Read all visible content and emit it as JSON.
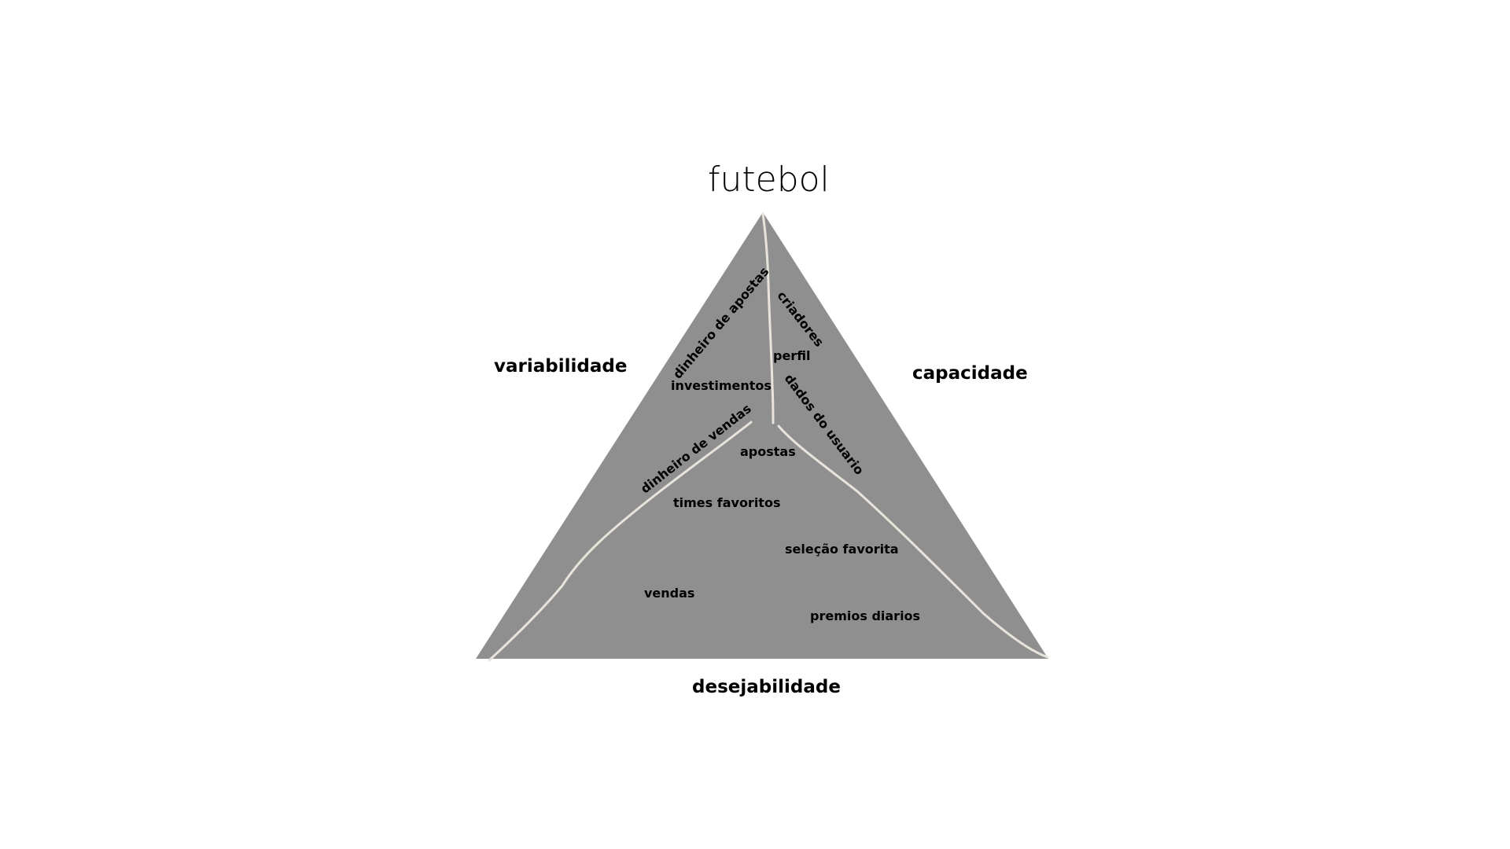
{
  "diagram": {
    "title": "futebol",
    "axes": {
      "left": "variabilidade",
      "right": "capacidade",
      "bottom": "desejabilidade"
    },
    "items": {
      "dinheiro_de_apostas": "dinheiro de apostas",
      "investimentos": "investimentos",
      "criadores": "criadores",
      "perfil": "perfil",
      "dados_do_usuario": "dados do usuario",
      "dinheiro_de_vendas": "dinheiro de vendas",
      "apostas": "apostas",
      "times_favoritos": "times favoritos",
      "selecao_favorita": "seleção favorita",
      "vendas": "vendas",
      "premios_diarios": "premios diarios"
    },
    "colors": {
      "triangle_fill": "#8f8f8f",
      "divider": "#e8e4dc",
      "text": "#000000",
      "background": "#ffffff"
    }
  }
}
